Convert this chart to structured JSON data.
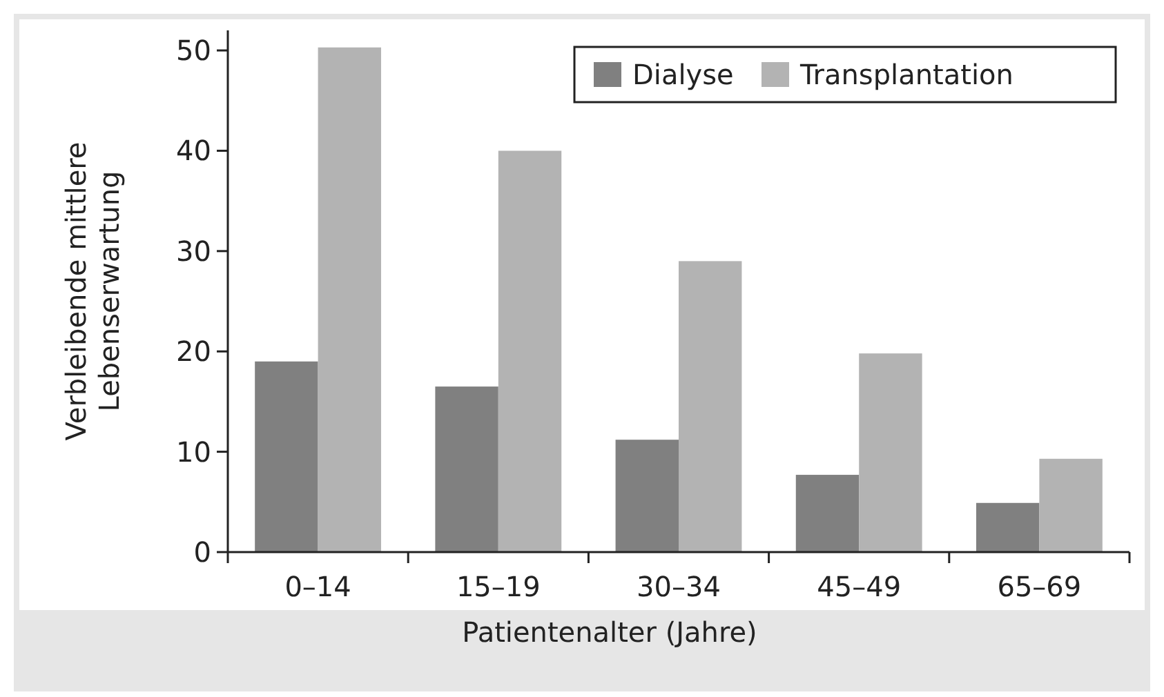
{
  "chart_data": {
    "type": "bar",
    "xlabel": "Patientenalter (Jahre)",
    "ylabel": "Verbleibende mittlere Lebenserwartung",
    "categories": [
      "0–14",
      "15–19",
      "30–34",
      "45–49",
      "65–69"
    ],
    "series": [
      {
        "name": "Dialyse",
        "color": "#808080",
        "values": [
          19,
          16.5,
          11.2,
          7.7,
          4.9
        ]
      },
      {
        "name": "Transplantation",
        "color": "#b3b3b3",
        "values": [
          50.3,
          40,
          29,
          19.8,
          9.3
        ]
      }
    ],
    "ylim": [
      0,
      52
    ],
    "yticks": [
      0,
      10,
      20,
      30,
      40,
      50
    ],
    "grid": false,
    "legend": "top right"
  }
}
